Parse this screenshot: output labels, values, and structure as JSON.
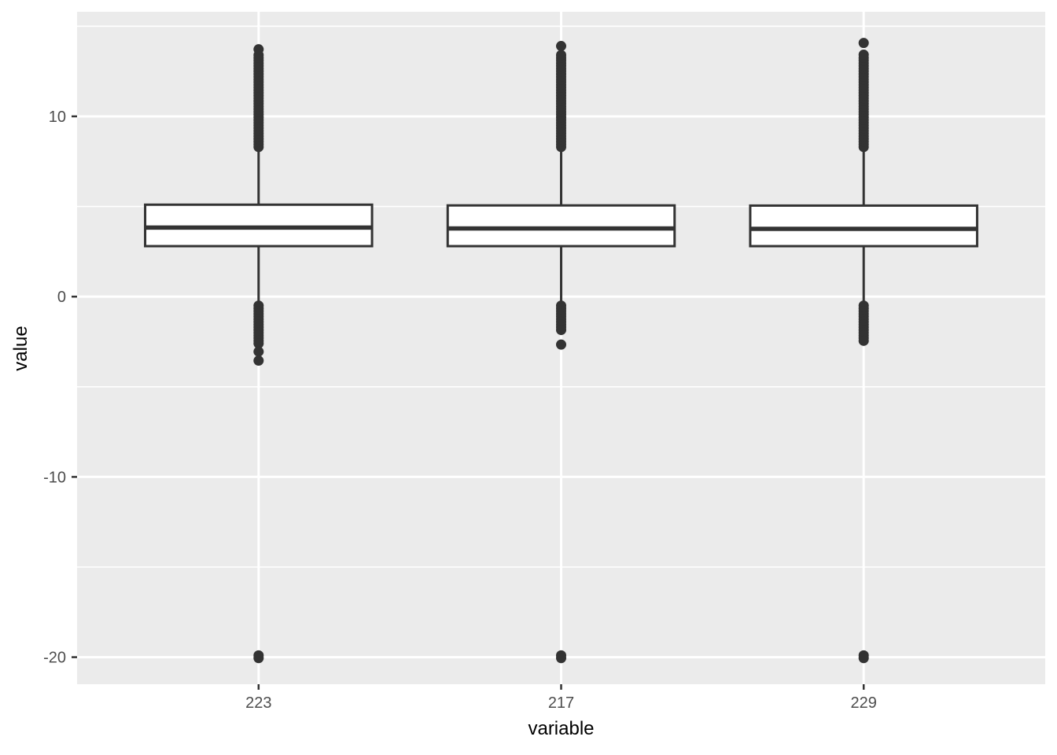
{
  "chart_data": {
    "type": "boxplot",
    "title": "",
    "xlabel": "variable",
    "ylabel": "value",
    "categories": [
      "223",
      "217",
      "229"
    ],
    "ylim": [
      -21.5,
      15.8
    ],
    "y_major_ticks": [
      {
        "value": 10,
        "label": "10"
      },
      {
        "value": 0,
        "label": "0"
      },
      {
        "value": -10,
        "label": "-10"
      },
      {
        "value": -20,
        "label": "-20"
      }
    ],
    "y_minor_gridlines": [
      15,
      5,
      -5,
      -15
    ],
    "grid": "on",
    "legend": "none",
    "box_width_fraction": 0.75,
    "series": [
      {
        "label": "223",
        "q1": 2.8,
        "median": 3.83,
        "q3": 5.1,
        "whisker_low": -0.45,
        "whisker_high": 8.3,
        "outliers_high": [
          8.3,
          8.45,
          8.6,
          8.75,
          8.9,
          9.05,
          9.2,
          9.35,
          9.5,
          9.65,
          9.8,
          9.95,
          10.1,
          10.25,
          10.4,
          10.55,
          10.7,
          10.85,
          11.0,
          11.15,
          11.3,
          11.45,
          11.6,
          11.75,
          11.9,
          12.05,
          12.2,
          12.35,
          12.5,
          12.65,
          12.8,
          12.95,
          13.1,
          13.25,
          13.4,
          13.72
        ],
        "outliers_low": [
          -0.5,
          -0.65,
          -0.8,
          -0.95,
          -1.1,
          -1.25,
          -1.4,
          -1.55,
          -1.7,
          -1.85,
          -2.0,
          -2.15,
          -2.3,
          -2.45,
          -2.6,
          -3.05,
          -3.55,
          -19.9,
          -20.05
        ]
      },
      {
        "label": "217",
        "q1": 2.8,
        "median": 3.78,
        "q3": 5.06,
        "whisker_low": -0.45,
        "whisker_high": 8.3,
        "outliers_high": [
          8.3,
          8.45,
          8.6,
          8.75,
          8.9,
          9.05,
          9.2,
          9.35,
          9.5,
          9.65,
          9.8,
          9.95,
          10.1,
          10.25,
          10.4,
          10.55,
          10.7,
          10.85,
          11.0,
          11.15,
          11.3,
          11.45,
          11.6,
          11.75,
          11.9,
          12.05,
          12.2,
          12.35,
          12.5,
          12.65,
          12.8,
          12.95,
          13.1,
          13.25,
          13.4,
          13.9
        ],
        "outliers_low": [
          -0.5,
          -0.65,
          -0.8,
          -0.95,
          -1.1,
          -1.25,
          -1.4,
          -1.55,
          -1.7,
          -1.85,
          -2.66,
          -19.9,
          -20.05
        ]
      },
      {
        "label": "229",
        "q1": 2.8,
        "median": 3.76,
        "q3": 5.05,
        "whisker_low": -0.45,
        "whisker_high": 8.3,
        "outliers_high": [
          8.3,
          8.45,
          8.6,
          8.75,
          8.9,
          9.05,
          9.2,
          9.35,
          9.5,
          9.65,
          9.8,
          9.95,
          10.1,
          10.25,
          10.4,
          10.55,
          10.7,
          10.85,
          11.0,
          11.15,
          11.3,
          11.45,
          11.6,
          11.75,
          11.9,
          12.05,
          12.2,
          12.35,
          12.5,
          12.65,
          12.8,
          12.95,
          13.1,
          13.25,
          13.42,
          14.07
        ],
        "outliers_low": [
          -0.5,
          -0.65,
          -0.8,
          -0.95,
          -1.1,
          -1.25,
          -1.4,
          -1.55,
          -1.7,
          -1.85,
          -2.0,
          -2.15,
          -2.3,
          -2.45,
          -19.9,
          -20.05
        ]
      }
    ],
    "colors": {
      "page_bg": "#FFFFFF",
      "panel_bg": "#EBEBEB",
      "grid": "#FFFFFF",
      "box_stroke": "#333333",
      "box_fill": "#FFFFFF",
      "outlier": "#333333",
      "tick_mark": "#333333",
      "tick_label": "#4D4D4D",
      "axis_title": "#000000"
    }
  }
}
